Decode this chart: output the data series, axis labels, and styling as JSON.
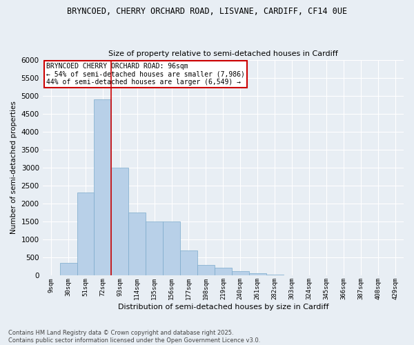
{
  "title_line1": "BRYNCOED, CHERRY ORCHARD ROAD, LISVANE, CARDIFF, CF14 0UE",
  "title_line2": "Size of property relative to semi-detached houses in Cardiff",
  "xlabel": "Distribution of semi-detached houses by size in Cardiff",
  "ylabel": "Number of semi-detached properties",
  "footer": "Contains HM Land Registry data © Crown copyright and database right 2025.\nContains public sector information licensed under the Open Government Licence v3.0.",
  "categories": [
    "9sqm",
    "30sqm",
    "51sqm",
    "72sqm",
    "93sqm",
    "114sqm",
    "135sqm",
    "156sqm",
    "177sqm",
    "198sqm",
    "219sqm",
    "240sqm",
    "261sqm",
    "282sqm",
    "303sqm",
    "324sqm",
    "345sqm",
    "366sqm",
    "387sqm",
    "408sqm",
    "429sqm"
  ],
  "values": [
    0,
    350,
    2300,
    4900,
    3000,
    1750,
    1500,
    1500,
    700,
    300,
    220,
    120,
    60,
    30,
    15,
    8,
    4,
    2,
    1,
    0,
    0
  ],
  "bar_color": "#b8d0e8",
  "bar_edge_color": "#7aaacb",
  "vline_color": "#cc0000",
  "vline_position": 3.5,
  "annotation_text_line1": "BRYNCOED CHERRY ORCHARD ROAD: 96sqm",
  "annotation_text_line2": "← 54% of semi-detached houses are smaller (7,986)",
  "annotation_text_line3": "44% of semi-detached houses are larger (6,549) →",
  "ylim": [
    0,
    6000
  ],
  "yticks": [
    0,
    500,
    1000,
    1500,
    2000,
    2500,
    3000,
    3500,
    4000,
    4500,
    5000,
    5500,
    6000
  ],
  "background_color": "#e8eef4",
  "grid_color": "#ffffff",
  "annotation_box_color": "#ffffff",
  "annotation_box_edge": "#cc0000"
}
